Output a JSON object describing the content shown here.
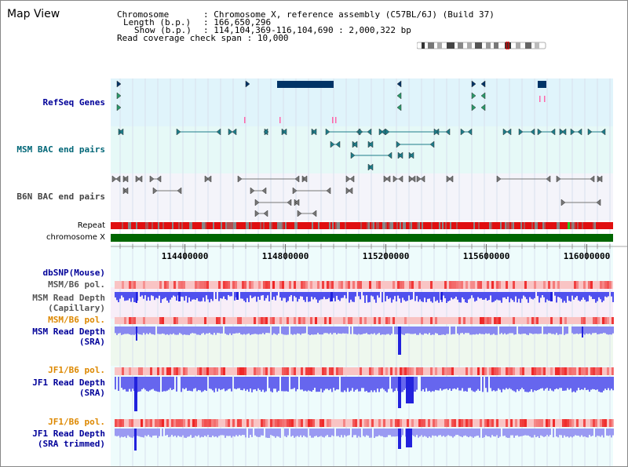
{
  "title": "Map View",
  "header": {
    "chromosome_label": "Chromosome",
    "chromosome_value": ": Chromosome X, reference assembly (C57BL/6J) (Build 37)",
    "length_label": "Length (b.p.)",
    "length_value": ": 166,650,296",
    "show_label": "Show (b.p.)",
    "show_value": ": 114,104,369-116,104,690 : 2,000,322 bp",
    "coverage_label": "Read coverage check span",
    "coverage_value": ": 10,000"
  },
  "tracks": {
    "refseq": "RefSeq Genes",
    "msm_bac": "MSM BAC end pairs",
    "b6n_bac": "B6N BAC end pairs",
    "repeat": "Repeat",
    "chromosome": "chromosome X",
    "dbsnp": "dbSNP(Mouse)",
    "msm_b6_pol": "MSM/B6 pol.",
    "msm_read_depth_cap_1": "MSM Read Depth",
    "msm_read_depth_cap_2": "(Capillary)",
    "msm_b6_pol_2": "MSM/B6 pol.",
    "msm_read_depth_sra_1": "MSM Read Depth",
    "msm_read_depth_sra_2": "(SRA)",
    "jf1_b6_pol": "JF1/B6 pol.",
    "jf1_read_depth_1": "JF1 Read Depth",
    "jf1_read_depth_2": "(SRA)",
    "jf1_b6_pol_2": "JF1/B6 pol.",
    "jf1_trim_1": "JF1 Read Depth",
    "jf1_trim_2": "(SRA trimmed)"
  },
  "axis": {
    "ticks": [
      "114400000",
      "114800000",
      "115200000",
      "115600000",
      "116000000"
    ],
    "tick_values": [
      114400000,
      114800000,
      115200000,
      115600000,
      116000000
    ],
    "range": [
      114104369,
      116104690
    ]
  },
  "colors": {
    "refseq_bg": "#e0f4fb",
    "msm_bg": "#e6f9f7",
    "b6n_bg": "#f4f4fa",
    "gene": "#003366",
    "msm_bac": "#1d7d8a",
    "b6n_bac": "#777777",
    "chrom_green": "#006600",
    "depth_blue": "#3333ee",
    "pol_red": "#ee2222",
    "label_navy": "#000099",
    "label_teal": "#006677",
    "label_gray": "#444444",
    "label_orange": "#dd8800"
  }
}
